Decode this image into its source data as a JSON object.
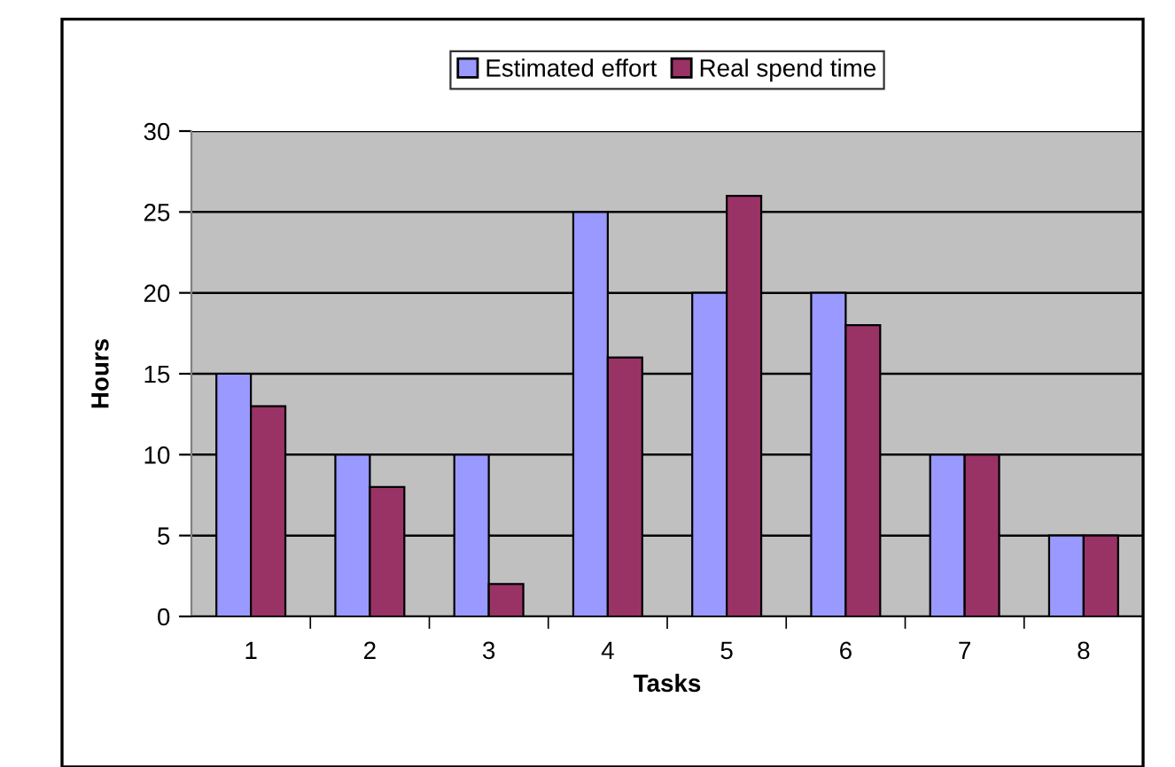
{
  "chart_data": {
    "type": "bar",
    "xlabel": "Tasks",
    "ylabel": "Hours",
    "categories": [
      "1",
      "2",
      "3",
      "4",
      "5",
      "6",
      "7",
      "8"
    ],
    "series": [
      {
        "name": "Estimated effort",
        "color": "#9999ff",
        "values": [
          15,
          10,
          10,
          25,
          20,
          20,
          10,
          5
        ]
      },
      {
        "name": "Real spend time",
        "color": "#993366",
        "values": [
          13,
          8,
          2,
          16,
          26,
          18,
          10,
          5
        ]
      }
    ],
    "ylim": [
      0,
      30
    ],
    "yticks": [
      0,
      5,
      10,
      15,
      20,
      25,
      30
    ],
    "grid": "y",
    "legend": "top"
  }
}
